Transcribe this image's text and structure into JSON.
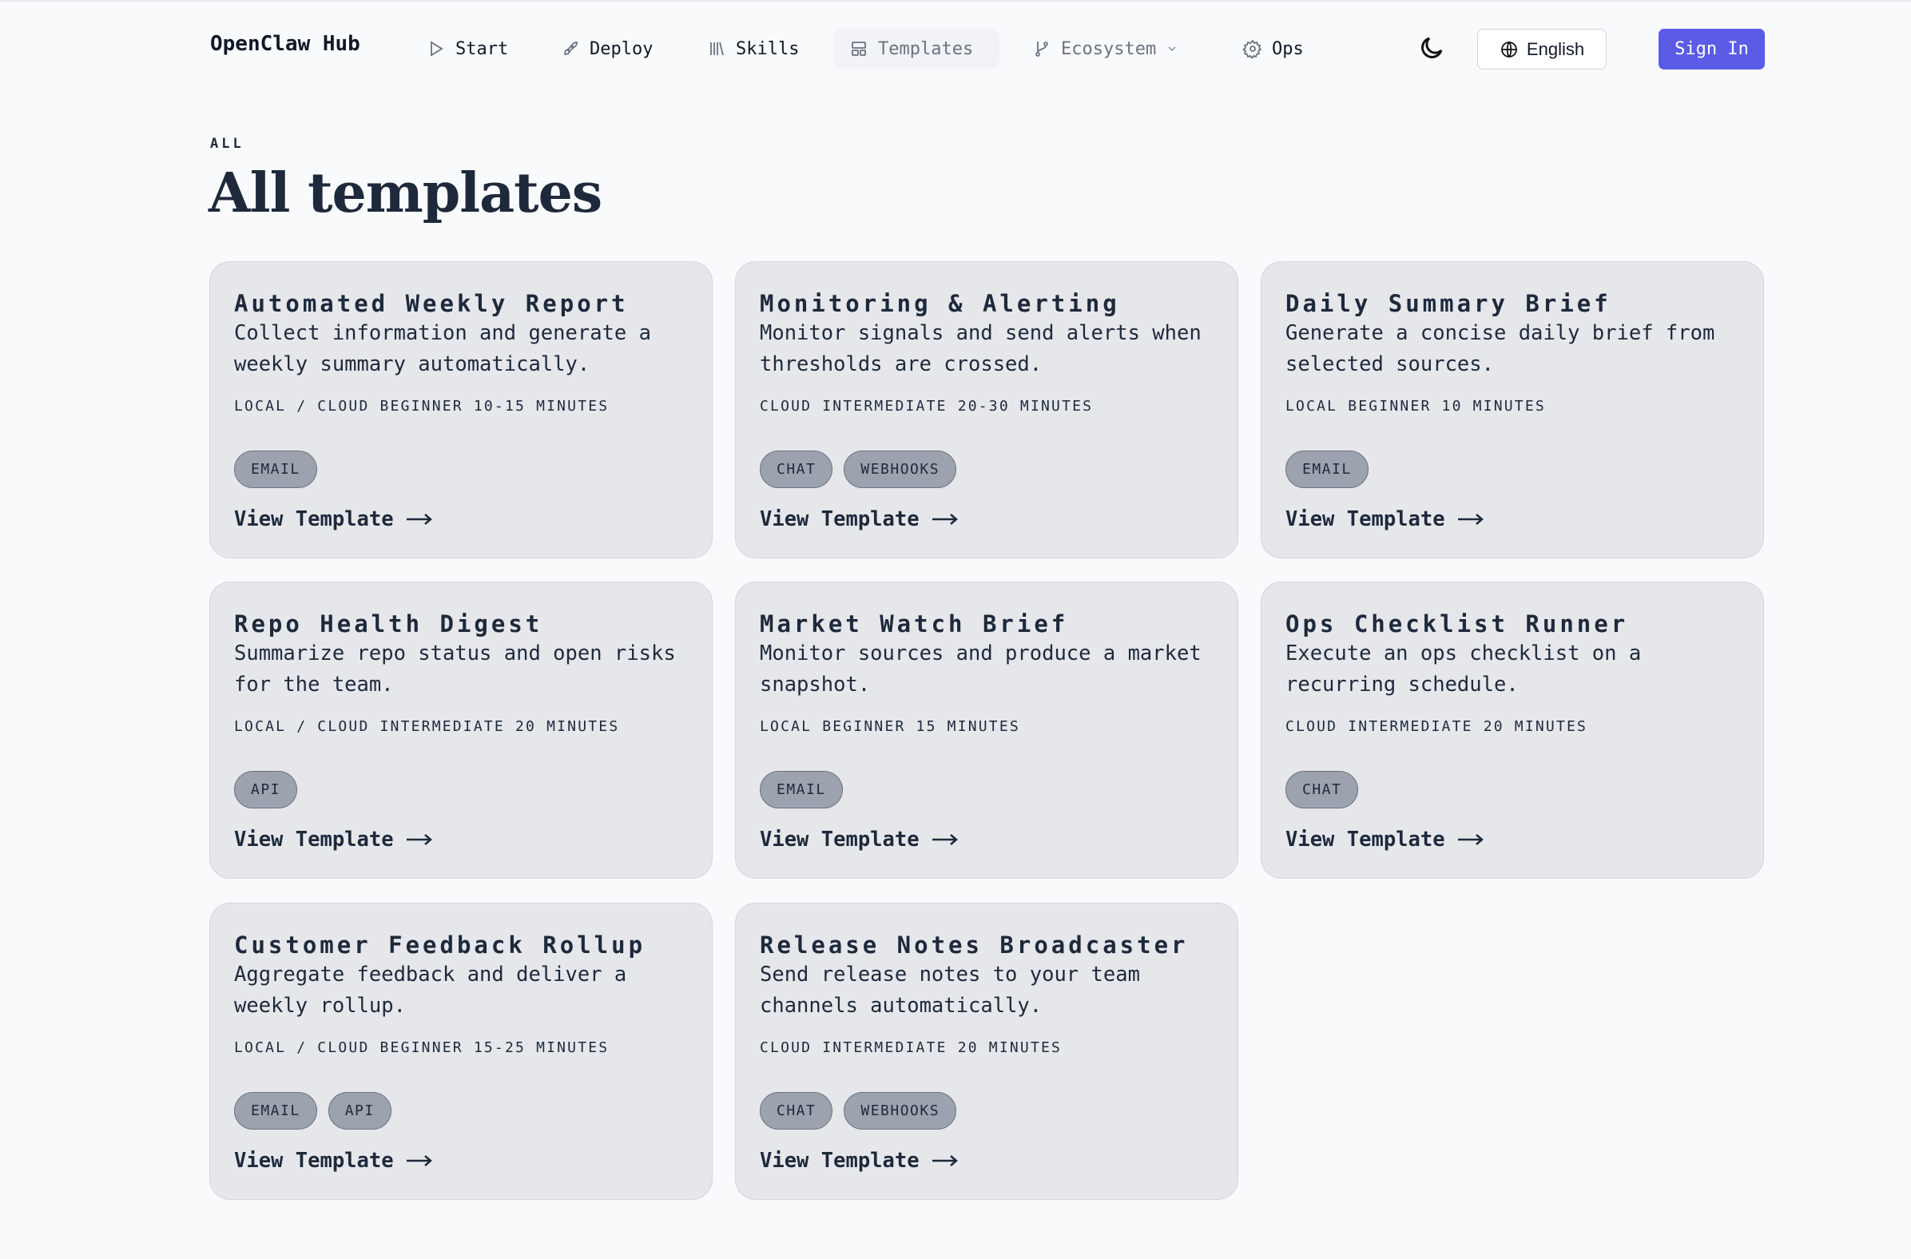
{
  "nav": {
    "logo": "OpenClaw Hub",
    "items": [
      {
        "label": "Start",
        "icon": "play-icon"
      },
      {
        "label": "Deploy",
        "icon": "rocket-icon"
      },
      {
        "label": "Skills",
        "icon": "library-icon"
      },
      {
        "label": "Templates",
        "icon": "layout-icon",
        "active": true
      },
      {
        "label": "Ecosystem",
        "icon": "git-branch-icon",
        "dropdown": true
      },
      {
        "label": "Ops",
        "icon": "gear-icon"
      }
    ],
    "theme_icon": "moon-icon",
    "language": "English",
    "sign_in": "Sign In",
    "accent": "#5b5be6"
  },
  "page": {
    "eyebrow": "ALL",
    "title": "All templates"
  },
  "cards": [
    {
      "title": "Automated Weekly Report",
      "desc": "Collect information and generate a weekly summary automatically.",
      "meta": "LOCAL / CLOUD BEGINNER 10-15 MINUTES",
      "tags": [
        "EMAIL"
      ],
      "link": "View Template"
    },
    {
      "title": "Monitoring & Alerting",
      "desc": "Monitor signals and send alerts when thresholds are crossed.",
      "meta": "CLOUD INTERMEDIATE 20-30 MINUTES",
      "tags": [
        "CHAT",
        "WEBHOOKS"
      ],
      "link": "View Template"
    },
    {
      "title": "Daily Summary Brief",
      "desc": "Generate a concise daily brief from selected sources.",
      "meta": "LOCAL BEGINNER 10 MINUTES",
      "tags": [
        "EMAIL"
      ],
      "link": "View Template"
    },
    {
      "title": "Repo Health Digest",
      "desc": "Summarize repo status and open risks for the team.",
      "meta": "LOCAL / CLOUD INTERMEDIATE 20 MINUTES",
      "tags": [
        "API"
      ],
      "link": "View Template"
    },
    {
      "title": "Market Watch Brief",
      "desc": "Monitor sources and produce a market snapshot.",
      "meta": "LOCAL BEGINNER 15 MINUTES",
      "tags": [
        "EMAIL"
      ],
      "link": "View Template"
    },
    {
      "title": "Ops Checklist Runner",
      "desc": "Execute an ops checklist on a recurring schedule.",
      "meta": "CLOUD INTERMEDIATE 20 MINUTES",
      "tags": [
        "CHAT"
      ],
      "link": "View Template"
    },
    {
      "title": "Customer Feedback Rollup",
      "desc": "Aggregate feedback and deliver a weekly rollup.",
      "meta": "LOCAL / CLOUD BEGINNER 15-25 MINUTES",
      "tags": [
        "EMAIL",
        "API"
      ],
      "link": "View Template"
    },
    {
      "title": "Release Notes Broadcaster",
      "desc": "Send release notes to your team channels automatically.",
      "meta": "CLOUD INTERMEDIATE 20 MINUTES",
      "tags": [
        "CHAT",
        "WEBHOOKS"
      ],
      "link": "View Template"
    }
  ]
}
